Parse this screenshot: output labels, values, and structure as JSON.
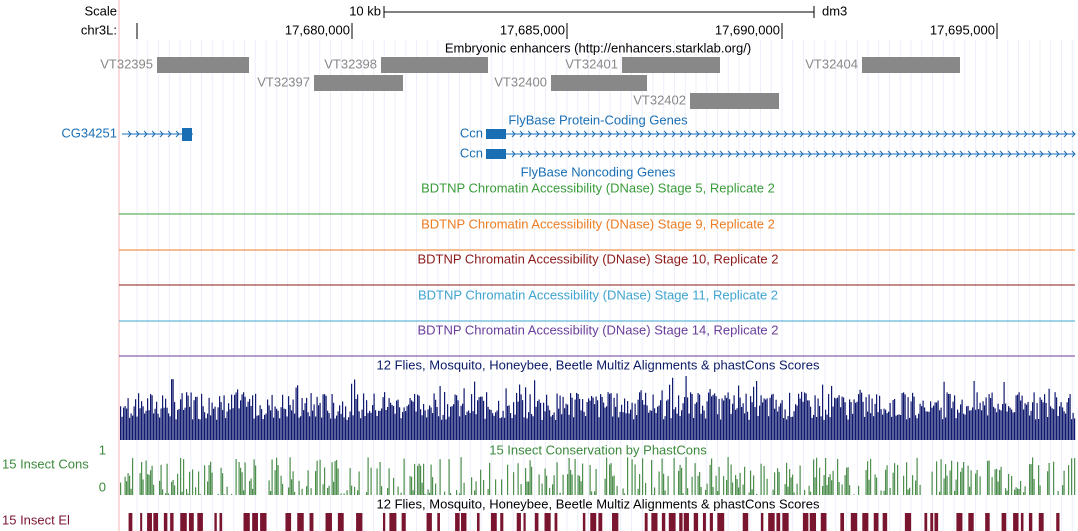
{
  "header": {
    "scale": "Scale",
    "scale_bar": "10 kb",
    "assembly": "dm3",
    "chrom": "chr3L:",
    "ticks": [
      "17,680,000",
      "17,685,000",
      "17,690,000",
      "17,695,000"
    ]
  },
  "tracks": {
    "enhancers": {
      "title": "Embryonic enhancers (http://enhancers.starklab.org/)",
      "items": [
        "VT32395",
        "VT32398",
        "VT32401",
        "VT32404",
        "VT32397",
        "VT32400",
        "VT32402"
      ]
    },
    "protein_coding": {
      "title": "FlyBase Protein-Coding Genes",
      "genes": [
        "CG34251",
        "Ccn",
        "Ccn"
      ]
    },
    "noncoding": {
      "title": "FlyBase Noncoding Genes"
    },
    "dnase": [
      "BDTNP Chromatin Accessibility (DNase) Stage 5, Replicate 2",
      "BDTNP Chromatin Accessibility (DNase) Stage 9, Replicate 2",
      "BDTNP Chromatin Accessibility (DNase) Stage 10, Replicate 2",
      "BDTNP Chromatin Accessibility (DNase) Stage 11, Replicate 2",
      "BDTNP Chromatin Accessibility (DNase) Stage 14, Replicate 2"
    ],
    "multiz": {
      "title": "12 Flies, Mosquito, Honeybee, Beetle Multiz Alignments & phastCons Scores"
    },
    "phastcons": {
      "title": "15 Insect Conservation by PhastCons",
      "label": "15 Insect Cons",
      "axis_max": "1",
      "axis_min": "0"
    },
    "elements": {
      "title": "12 Flies, Mosquito, Honeybee, Beetle Multiz Alignments & phastCons Scores",
      "label": "15 Insect El"
    }
  }
}
